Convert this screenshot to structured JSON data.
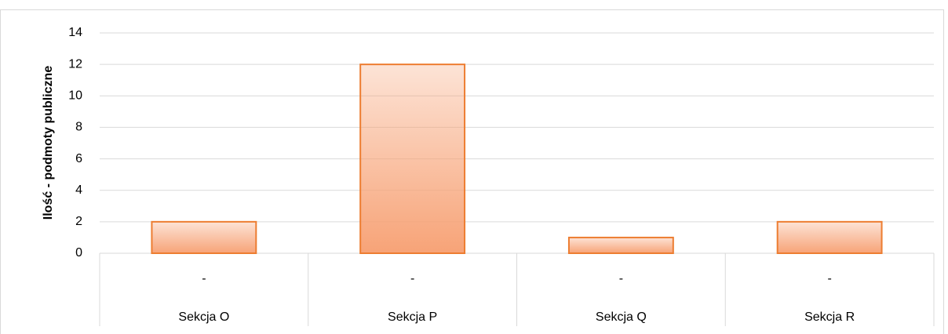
{
  "chart_data": {
    "type": "bar",
    "y_axis_label": "Ilość - podmoty publiczne",
    "categories": [
      "-",
      "-",
      "-",
      "-"
    ],
    "category_groups": [
      "Sekcja O",
      "Sekcja P",
      "Sekcja Q",
      "Sekcja R"
    ],
    "values": [
      2,
      12,
      1,
      2
    ],
    "color": "#f7a377",
    "ylim": [
      0,
      14
    ],
    "yticks": [
      0,
      2,
      4,
      6,
      8,
      10,
      12,
      14
    ],
    "grid": true
  }
}
